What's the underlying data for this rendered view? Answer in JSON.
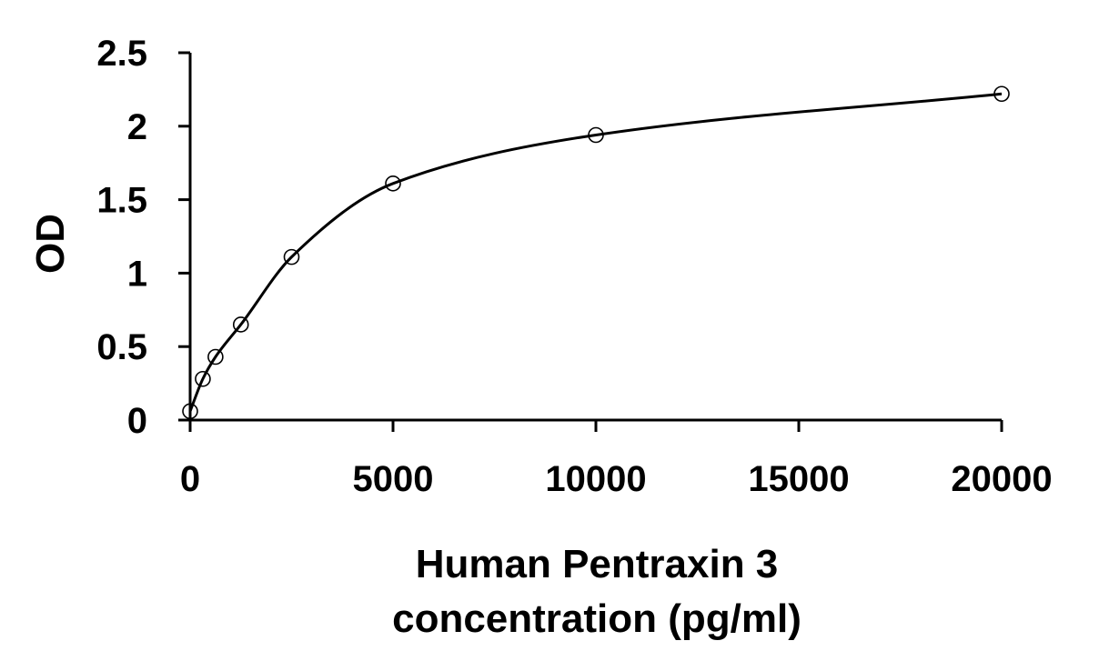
{
  "chart_data": {
    "type": "scatter",
    "title": "",
    "xlabel_lines": [
      "Human Pentraxin 3",
      "concentration (pg/ml)"
    ],
    "ylabel": "OD",
    "xlim": [
      0,
      20000
    ],
    "ylim": [
      0,
      2.5
    ],
    "x_ticks": [
      0,
      5000,
      10000,
      15000,
      20000
    ],
    "x_tick_labels": [
      "0",
      "5000",
      "10000",
      "15000",
      "20000"
    ],
    "y_ticks": [
      0,
      0.5,
      1,
      1.5,
      2,
      2.5
    ],
    "y_tick_labels": [
      "0",
      "0.5",
      "1",
      "1.5",
      "2",
      "2.5"
    ],
    "grid": false,
    "legend": "none",
    "series": [
      {
        "marker": "open-circle",
        "fit": "smooth-curve",
        "x": [
          0,
          312.5,
          625,
          1250,
          2500,
          5000,
          10000,
          20000
        ],
        "y": [
          0.06,
          0.28,
          0.43,
          0.65,
          1.11,
          1.61,
          1.94,
          2.22
        ]
      }
    ],
    "colors": {
      "axis": "#000000",
      "curve": "#000000",
      "marker_stroke": "#000000",
      "marker_fill": "#ffffff"
    }
  }
}
